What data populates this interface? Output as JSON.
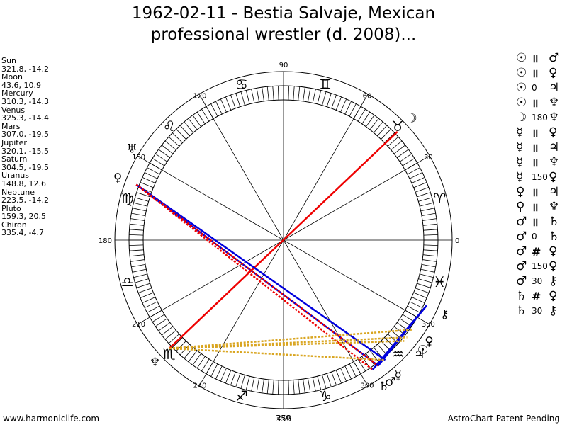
{
  "title_line1": "1962-02-11 - Bestia Salvaje, Mexican",
  "title_line2": "professional wrestler (d. 2008)...",
  "planets": [
    {
      "name": "Sun",
      "coords": "321.8, -14.2"
    },
    {
      "name": "Moon",
      "coords": "43.6, 10.9"
    },
    {
      "name": "Mercury",
      "coords": "310.3, -14.3"
    },
    {
      "name": "Venus",
      "coords": "325.3, -14.4"
    },
    {
      "name": "Mars",
      "coords": "307.0, -19.5"
    },
    {
      "name": "Jupiter",
      "coords": "320.1, -15.5"
    },
    {
      "name": "Saturn",
      "coords": "304.5, -19.5"
    },
    {
      "name": "Uranus",
      "coords": "148.8, 12.6"
    },
    {
      "name": "Neptune",
      "coords": "223.5, -14.2"
    },
    {
      "name": "Pluto",
      "coords": "159.3, 20.5"
    },
    {
      "name": "Chiron",
      "coords": "335.4, -4.7"
    }
  ],
  "aspects": [
    {
      "p1": "☉",
      "asp": "॥",
      "p2": "♂",
      "sym": true
    },
    {
      "p1": "☉",
      "asp": "॥",
      "p2": "♀",
      "sym": true
    },
    {
      "p1": "☉",
      "asp": "0",
      "p2": "♃",
      "sym": false
    },
    {
      "p1": "☉",
      "asp": "॥",
      "p2": "♆",
      "sym": true
    },
    {
      "p1": "☽",
      "asp": "180",
      "p2": "♆",
      "sym": false
    },
    {
      "p1": "☿",
      "asp": "॥",
      "p2": "♀",
      "sym": true
    },
    {
      "p1": "☿",
      "asp": "॥",
      "p2": "♃",
      "sym": true
    },
    {
      "p1": "☿",
      "asp": "॥",
      "p2": "♆",
      "sym": true
    },
    {
      "p1": "☿",
      "asp": "150",
      "p2": "♀",
      "sym": false
    },
    {
      "p1": "♀",
      "asp": "॥",
      "p2": "♃",
      "sym": true
    },
    {
      "p1": "♀",
      "asp": "॥",
      "p2": "♆",
      "sym": true
    },
    {
      "p1": "♂",
      "asp": "॥",
      "p2": "♄",
      "sym": true
    },
    {
      "p1": "♂",
      "asp": "0",
      "p2": "♄",
      "sym": false
    },
    {
      "p1": "♂",
      "asp": "#",
      "p2": "♀",
      "sym": true
    },
    {
      "p1": "♂",
      "asp": "150",
      "p2": "♀",
      "sym": false
    },
    {
      "p1": "♂",
      "asp": "30",
      "p2": "⚷",
      "sym": false
    },
    {
      "p1": "♄",
      "asp": "#",
      "p2": "♀",
      "sym": true
    },
    {
      "p1": "♄",
      "asp": "30",
      "p2": "⚷",
      "sym": false
    }
  ],
  "degree_labels": [
    "0",
    "30",
    "60",
    "90",
    "120",
    "150",
    "180",
    "210",
    "240",
    "270",
    "300",
    "330"
  ],
  "zodiac_glyphs": [
    "♈",
    "♉",
    "♊",
    "♋",
    "♌",
    "♍",
    "♎",
    "♏",
    "♐",
    "♑",
    "♒",
    "♓"
  ],
  "planet_glyphs": [
    {
      "name": "sun",
      "glyph": "☉",
      "lon": 321.8
    },
    {
      "name": "moon",
      "glyph": "☽",
      "lon": 43.6
    },
    {
      "name": "mercury",
      "glyph": "☿",
      "lon": 310.3
    },
    {
      "name": "venus",
      "glyph": "♀",
      "lon": 325.3
    },
    {
      "name": "mars",
      "glyph": "♂",
      "lon": 307.0
    },
    {
      "name": "jupiter",
      "glyph": "♃",
      "lon": 320.1
    },
    {
      "name": "saturn",
      "glyph": "♄",
      "lon": 304.5
    },
    {
      "name": "uranus",
      "glyph": "♅",
      "lon": 148.8
    },
    {
      "name": "neptune",
      "glyph": "♆",
      "lon": 223.5
    },
    {
      "name": "pluto",
      "glyph": "♀",
      "lon": 159.3
    },
    {
      "name": "chiron",
      "glyph": "⚷",
      "lon": 335.4
    }
  ],
  "aspect_lines": [
    {
      "a": 43.6,
      "b": 223.5,
      "color": "#ee0000",
      "style": "solid"
    },
    {
      "a": 159.3,
      "b": 310.3,
      "color": "#0000dd",
      "style": "solid"
    },
    {
      "a": 159.3,
      "b": 307.0,
      "color": "#0000dd",
      "style": "solid"
    },
    {
      "a": 159.3,
      "b": 304.5,
      "color": "#ee0000",
      "style": "dotted"
    },
    {
      "a": 159.3,
      "b": 307.0,
      "color": "#ee0000",
      "style": "dotted"
    },
    {
      "a": 307.0,
      "b": 335.4,
      "color": "#0000dd",
      "style": "solid"
    },
    {
      "a": 304.5,
      "b": 335.4,
      "color": "#0000dd",
      "style": "solid"
    },
    {
      "a": 223.5,
      "b": 321.8,
      "color": "#d9a520",
      "style": "dotted"
    },
    {
      "a": 223.5,
      "b": 325.3,
      "color": "#d9a520",
      "style": "dotted"
    },
    {
      "a": 223.5,
      "b": 320.1,
      "color": "#d9a520",
      "style": "dotted"
    },
    {
      "a": 223.5,
      "b": 310.3,
      "color": "#d9a520",
      "style": "dotted"
    }
  ],
  "footer_left": "www.harmoniclife.com",
  "footer_center": "359",
  "footer_right": "AstroChart Patent Pending",
  "colors": {
    "red": "#ee0000",
    "blue": "#0000dd",
    "gold": "#d9a520"
  }
}
